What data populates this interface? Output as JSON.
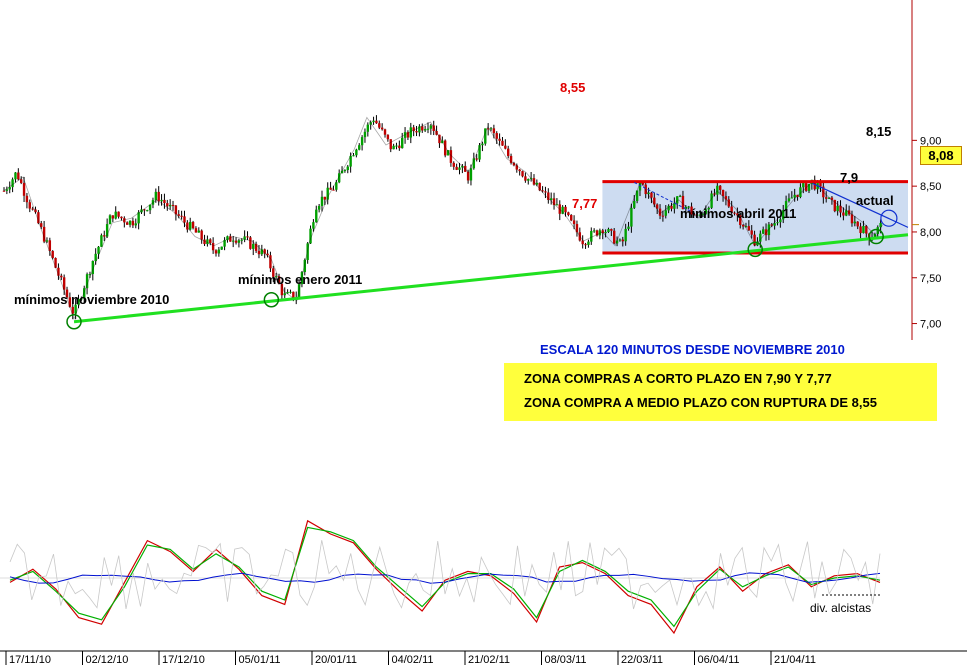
{
  "annotations": {
    "min_nov": "mínimos noviembre 2010",
    "min_ene": "mínimos enero 2011",
    "min_abr": "mínimos abril 2011",
    "actual": "actual",
    "div": "div. alcistas",
    "lvl_855": "8,55",
    "lvl_777": "7,77",
    "lvl_815": "8,15",
    "lvl_79": "7,9"
  },
  "notes": {
    "subtitle": "ESCALA 120 MINUTOS DESDE NOVIEMBRE 2010",
    "line1": "ZONA COMPRAS A CORTO PLAZO EN 7,90 Y 7,77",
    "line2": "ZONA COMPRA A MEDIO PLAZO CON RUPTURA DE 8,55"
  },
  "price_tag": "8,08",
  "chart_data": {
    "type": "candlestick",
    "x_tick_labels": [
      "17/11/10",
      "02/12/10",
      "17/12/10",
      "05/01/11",
      "20/01/11",
      "04/02/11",
      "21/02/11",
      "08/03/11",
      "22/03/11",
      "06/04/11",
      "21/04/11"
    ],
    "y_tick_labels": [
      "9,00",
      "8,50",
      "8,00",
      "7,50",
      "7,00"
    ],
    "ylim": [
      6.72,
      9.34
    ],
    "last_price": 8.08,
    "price_path": [
      [
        0,
        8.45
      ],
      [
        2,
        8.65
      ],
      [
        4,
        8.3
      ],
      [
        6,
        8.0
      ],
      [
        9,
        7.45
      ],
      [
        11,
        7.1
      ],
      [
        14,
        7.7
      ],
      [
        17,
        8.2
      ],
      [
        20,
        8.1
      ],
      [
        24,
        8.4
      ],
      [
        27,
        8.2
      ],
      [
        30,
        8.0
      ],
      [
        33,
        7.8
      ],
      [
        36,
        7.95
      ],
      [
        38,
        7.9
      ],
      [
        41,
        7.75
      ],
      [
        44,
        7.3
      ],
      [
        46,
        7.3
      ],
      [
        49,
        8.3
      ],
      [
        52,
        8.5
      ],
      [
        55,
        8.9
      ],
      [
        58,
        9.25
      ],
      [
        61,
        8.9
      ],
      [
        64,
        9.1
      ],
      [
        67,
        9.2
      ],
      [
        70,
        8.8
      ],
      [
        73,
        8.6
      ],
      [
        76,
        9.15
      ],
      [
        79,
        8.85
      ],
      [
        82,
        8.6
      ],
      [
        85,
        8.4
      ],
      [
        88,
        8.2
      ],
      [
        91,
        7.9
      ],
      [
        94,
        8.05
      ],
      [
        97,
        7.85
      ],
      [
        100,
        8.55
      ],
      [
        103,
        8.2
      ],
      [
        106,
        8.35
      ],
      [
        109,
        8.15
      ],
      [
        112,
        8.45
      ],
      [
        115,
        8.2
      ],
      [
        118,
        7.9
      ],
      [
        121,
        8.1
      ],
      [
        124,
        8.4
      ],
      [
        127,
        8.55
      ],
      [
        130,
        8.3
      ],
      [
        133,
        8.15
      ],
      [
        136,
        7.95
      ],
      [
        138,
        8.08
      ]
    ],
    "series": [
      {
        "name": "",
        "points": [
          [
            0,
            8.45
          ],
          [
            3,
            8.6
          ],
          [
            6,
            8.0
          ],
          [
            9,
            7.45
          ],
          [
            11,
            7.05
          ],
          [
            14,
            7.6
          ],
          [
            17,
            8.1
          ],
          [
            20,
            8.15
          ],
          [
            24,
            8.35
          ],
          [
            27,
            8.2
          ],
          [
            30,
            7.95
          ],
          [
            33,
            7.85
          ],
          [
            36,
            7.95
          ],
          [
            39,
            7.9
          ],
          [
            42,
            7.7
          ],
          [
            44,
            7.35
          ],
          [
            46,
            7.25
          ],
          [
            48,
            7.9
          ],
          [
            51,
            8.4
          ],
          [
            55,
            8.9
          ],
          [
            57,
            9.25
          ],
          [
            60,
            8.95
          ],
          [
            64,
            9.1
          ],
          [
            67,
            9.2
          ],
          [
            70,
            8.85
          ],
          [
            73,
            8.65
          ],
          [
            76,
            9.15
          ],
          [
            79,
            8.8
          ],
          [
            82,
            8.65
          ],
          [
            85,
            8.4
          ],
          [
            88,
            8.2
          ],
          [
            91,
            7.9
          ],
          [
            94,
            8.0
          ],
          [
            96,
            7.85
          ],
          [
            100,
            8.55
          ],
          [
            103,
            8.2
          ],
          [
            106,
            8.35
          ],
          [
            109,
            8.15
          ],
          [
            112,
            8.45
          ],
          [
            115,
            8.25
          ],
          [
            118,
            7.85
          ],
          [
            121,
            8.1
          ],
          [
            124,
            8.35
          ],
          [
            127,
            8.55
          ],
          [
            130,
            8.35
          ],
          [
            133,
            8.2
          ],
          [
            135,
            8.1
          ],
          [
            137,
            7.95
          ],
          [
            138,
            8.08
          ]
        ]
      }
    ],
    "lines": [
      {
        "name": "resistance",
        "from": [
          94,
          8.55
        ],
        "to": [
          142,
          8.55
        ]
      },
      {
        "name": "support",
        "from": [
          94,
          7.77
        ],
        "to": [
          142,
          7.77
        ]
      },
      {
        "name": "trendline-green",
        "from": [
          11,
          7.02
        ],
        "to": [
          142,
          7.97
        ]
      }
    ],
    "oscillator": {
      "series": [
        {
          "name": "",
          "values": [
            -0.2,
            0.4,
            -0.5,
            -1.8,
            -2.1,
            -0.2,
            1.7,
            1.2,
            0.3,
            1.3,
            0.4,
            -0.8,
            -1.2,
            2.6,
            2.0,
            1.6,
            0.4,
            -0.6,
            -1.5,
            -0.1,
            0.3,
            0.1,
            -0.7,
            -2.0,
            0.5,
            0.7,
            0.2,
            -0.8,
            -1.2,
            -2.5,
            -0.4,
            0.5,
            -0.6,
            0.2,
            0.6,
            -0.4,
            0.1,
            0.2,
            -0.2
          ]
        },
        {
          "name": "",
          "values": [
            -0.1,
            0.3,
            -0.6,
            -1.6,
            -1.9,
            -0.4,
            1.5,
            1.3,
            0.4,
            1.1,
            0.5,
            -0.6,
            -1.0,
            2.3,
            2.1,
            1.7,
            0.5,
            -0.4,
            -1.3,
            -0.2,
            0.2,
            0.2,
            -0.5,
            -1.8,
            0.3,
            0.8,
            0.3,
            -0.6,
            -1.0,
            -2.2,
            -0.6,
            0.4,
            -0.4,
            0.1,
            0.5,
            -0.3,
            0.0,
            0.1,
            -0.1
          ]
        }
      ]
    }
  }
}
